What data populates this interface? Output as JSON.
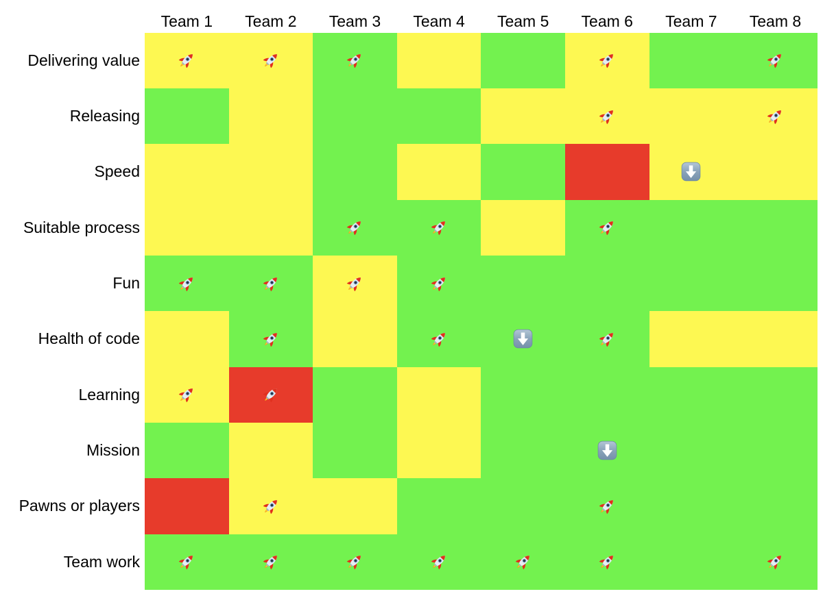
{
  "chart_data": {
    "type": "heatmap",
    "columns": [
      "Team 1",
      "Team 2",
      "Team 3",
      "Team 4",
      "Team 5",
      "Team 6",
      "Team 7",
      "Team 8"
    ],
    "palette": {
      "green": "#73f24f",
      "yellow": "#fdf852",
      "red": "#e73b2b"
    },
    "icons": {
      "rocket": "🚀",
      "down-arrow": "⬇️"
    },
    "rows": [
      {
        "label": "Delivering value",
        "cells": [
          {
            "color": "yellow",
            "icon": "rocket"
          },
          {
            "color": "yellow",
            "icon": "rocket"
          },
          {
            "color": "green",
            "icon": "rocket"
          },
          {
            "color": "yellow",
            "icon": null
          },
          {
            "color": "green",
            "icon": null
          },
          {
            "color": "yellow",
            "icon": "rocket"
          },
          {
            "color": "green",
            "icon": null
          },
          {
            "color": "green",
            "icon": "rocket"
          }
        ]
      },
      {
        "label": "Releasing",
        "cells": [
          {
            "color": "green",
            "icon": null
          },
          {
            "color": "yellow",
            "icon": null
          },
          {
            "color": "green",
            "icon": null
          },
          {
            "color": "green",
            "icon": null
          },
          {
            "color": "yellow",
            "icon": null
          },
          {
            "color": "yellow",
            "icon": "rocket"
          },
          {
            "color": "yellow",
            "icon": null
          },
          {
            "color": "yellow",
            "icon": "rocket"
          }
        ]
      },
      {
        "label": "Speed",
        "cells": [
          {
            "color": "yellow",
            "icon": null
          },
          {
            "color": "yellow",
            "icon": null
          },
          {
            "color": "green",
            "icon": null
          },
          {
            "color": "yellow",
            "icon": null
          },
          {
            "color": "green",
            "icon": null
          },
          {
            "color": "red",
            "icon": null
          },
          {
            "color": "yellow",
            "icon": "down-arrow"
          },
          {
            "color": "yellow",
            "icon": null
          }
        ]
      },
      {
        "label": "Suitable process",
        "cells": [
          {
            "color": "yellow",
            "icon": null
          },
          {
            "color": "yellow",
            "icon": null
          },
          {
            "color": "green",
            "icon": "rocket"
          },
          {
            "color": "green",
            "icon": "rocket"
          },
          {
            "color": "yellow",
            "icon": null
          },
          {
            "color": "green",
            "icon": "rocket"
          },
          {
            "color": "green",
            "icon": null
          },
          {
            "color": "green",
            "icon": null
          }
        ]
      },
      {
        "label": "Fun",
        "cells": [
          {
            "color": "green",
            "icon": "rocket"
          },
          {
            "color": "green",
            "icon": "rocket"
          },
          {
            "color": "yellow",
            "icon": "rocket"
          },
          {
            "color": "green",
            "icon": "rocket"
          },
          {
            "color": "green",
            "icon": null
          },
          {
            "color": "green",
            "icon": null
          },
          {
            "color": "green",
            "icon": null
          },
          {
            "color": "green",
            "icon": null
          }
        ]
      },
      {
        "label": "Health of code",
        "cells": [
          {
            "color": "yellow",
            "icon": null
          },
          {
            "color": "green",
            "icon": "rocket"
          },
          {
            "color": "yellow",
            "icon": null
          },
          {
            "color": "green",
            "icon": "rocket"
          },
          {
            "color": "green",
            "icon": "down-arrow"
          },
          {
            "color": "green",
            "icon": "rocket"
          },
          {
            "color": "yellow",
            "icon": null
          },
          {
            "color": "yellow",
            "icon": null
          }
        ]
      },
      {
        "label": "Learning",
        "cells": [
          {
            "color": "yellow",
            "icon": "rocket"
          },
          {
            "color": "red",
            "icon": "rocket"
          },
          {
            "color": "green",
            "icon": null
          },
          {
            "color": "yellow",
            "icon": null
          },
          {
            "color": "green",
            "icon": null
          },
          {
            "color": "green",
            "icon": null
          },
          {
            "color": "green",
            "icon": null
          },
          {
            "color": "green",
            "icon": null
          }
        ]
      },
      {
        "label": "Mission",
        "cells": [
          {
            "color": "green",
            "icon": null
          },
          {
            "color": "yellow",
            "icon": null
          },
          {
            "color": "green",
            "icon": null
          },
          {
            "color": "yellow",
            "icon": null
          },
          {
            "color": "green",
            "icon": null
          },
          {
            "color": "green",
            "icon": "down-arrow"
          },
          {
            "color": "green",
            "icon": null
          },
          {
            "color": "green",
            "icon": null
          }
        ]
      },
      {
        "label": "Pawns or players",
        "cells": [
          {
            "color": "red",
            "icon": null
          },
          {
            "color": "yellow",
            "icon": "rocket"
          },
          {
            "color": "yellow",
            "icon": null
          },
          {
            "color": "green",
            "icon": null
          },
          {
            "color": "green",
            "icon": null
          },
          {
            "color": "green",
            "icon": "rocket"
          },
          {
            "color": "green",
            "icon": null
          },
          {
            "color": "green",
            "icon": null
          }
        ]
      },
      {
        "label": "Team work",
        "cells": [
          {
            "color": "green",
            "icon": "rocket"
          },
          {
            "color": "green",
            "icon": "rocket"
          },
          {
            "color": "green",
            "icon": "rocket"
          },
          {
            "color": "green",
            "icon": "rocket"
          },
          {
            "color": "green",
            "icon": "rocket"
          },
          {
            "color": "green",
            "icon": "rocket"
          },
          {
            "color": "green",
            "icon": null
          },
          {
            "color": "green",
            "icon": "rocket"
          }
        ]
      }
    ]
  }
}
